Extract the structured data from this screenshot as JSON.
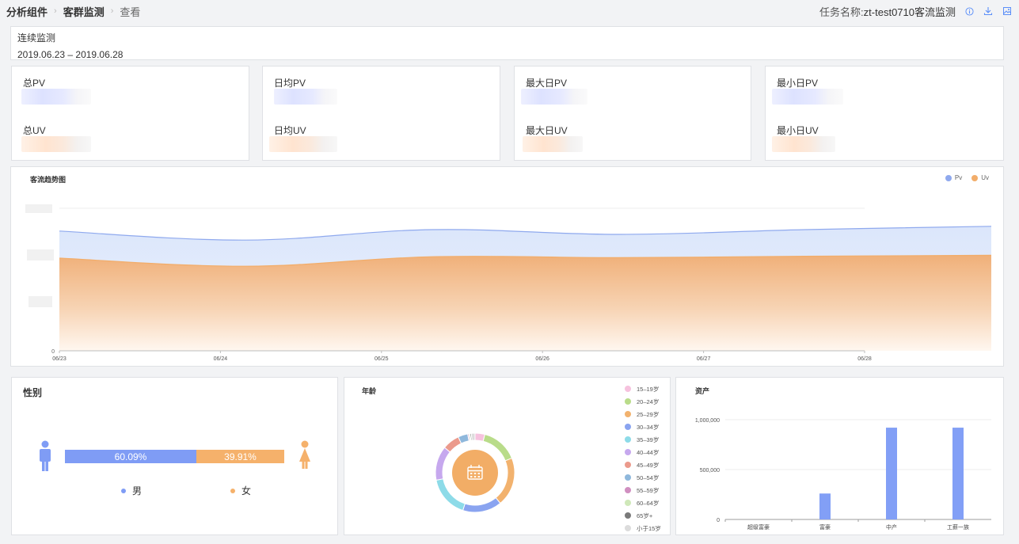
{
  "breadcrumb": {
    "item1": "分析组件",
    "item2": "客群监测",
    "item3": "查看",
    "separator": ">"
  },
  "task": {
    "label": "任务名称:",
    "name": "zt-test0710客流监测"
  },
  "icons": [
    "info-icon",
    "download-icon",
    "image-icon"
  ],
  "period": {
    "label": "连续监测",
    "range": "2019.06.23 – 2019.06.28"
  },
  "stats": [
    {
      "pv_label": "总PV",
      "uv_label": "总UV"
    },
    {
      "pv_label": "日均PV",
      "uv_label": "日均UV"
    },
    {
      "pv_label": "最大日PV",
      "uv_label": "最大日UV"
    },
    {
      "pv_label": "最小日PV",
      "uv_label": "最小日UV"
    }
  ],
  "colors": {
    "pv": "#8fa9ee",
    "uv": "#f2ad6a",
    "male": "#7f9cf5",
    "female": "#f5b16b",
    "bar": "#829ff6"
  },
  "trend": {
    "title": "客流趋势图",
    "legend": [
      {
        "name": "Pv"
      },
      {
        "name": "Uv"
      }
    ]
  },
  "chart_data": [
    {
      "type": "area",
      "title": "客流趋势图",
      "x": [
        "06/23",
        "06/24",
        "06/25",
        "06/26",
        "06/27",
        "06/28"
      ],
      "series": [
        {
          "name": "Pv",
          "values": [
            2.52,
            2.33,
            2.55,
            2.45,
            2.55,
            2.62
          ]
        },
        {
          "name": "Uv",
          "values": [
            1.95,
            1.78,
            1.98,
            1.96,
            1.99,
            2.01
          ]
        }
      ],
      "ylim": [
        0,
        3
      ],
      "y_tick_zero": "0",
      "grid": true,
      "legend": "top-right"
    },
    {
      "type": "pie",
      "title": "年龄",
      "categories": [
        "15–19岁",
        "20–24岁",
        "25–29岁",
        "30–34岁",
        "35–39岁",
        "40–44岁",
        "45–49岁",
        "50–54岁",
        "55–59岁",
        "60–64岁",
        "65岁+",
        "小于15岁"
      ],
      "values": [
        4,
        15,
        20,
        16,
        17,
        14,
        7,
        4,
        0.5,
        0.5,
        0.5,
        1.5
      ],
      "colors": [
        "#f6c2de",
        "#b9dc8a",
        "#f2b26e",
        "#8aa4f0",
        "#8ddbe8",
        "#c6a8ee",
        "#eb9a8c",
        "#8fb8dc",
        "#d08fc0",
        "#cfe8b9",
        "#7a7a7a",
        "#dcdcdc"
      ],
      "legend": "right"
    },
    {
      "type": "bar",
      "title": "资产",
      "categories": [
        "超级富豪",
        "富豪",
        "中产",
        "工薪一族"
      ],
      "values": [
        0,
        260000,
        920000,
        920000
      ],
      "yticks": [
        "0",
        "500,000",
        "1,000,000"
      ],
      "ylim": [
        0,
        1000000
      ],
      "grid": true
    }
  ],
  "gender": {
    "title": "性别",
    "male_pct": 60.09,
    "female_pct": 39.91,
    "male_text": "60.09%",
    "female_text": "39.91%",
    "male_label": "男",
    "female_label": "女"
  }
}
